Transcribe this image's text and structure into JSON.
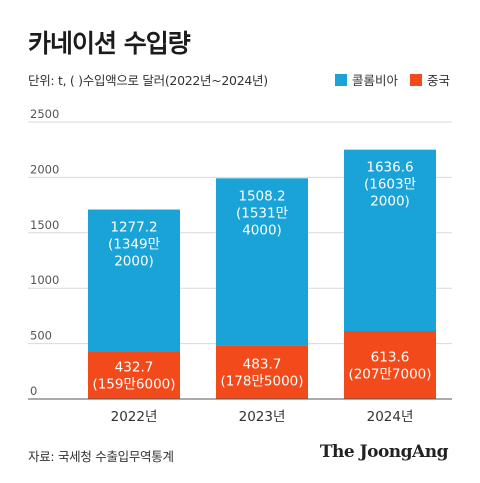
{
  "title": "카네이션 수입량",
  "subtitle": "단위: t, ( )수입액으로 달러(2022년~2024년)",
  "legend": [
    {
      "name": "콜롬비아",
      "color": "#1aa3d6"
    },
    {
      "name": "중국",
      "color": "#f24a1a"
    }
  ],
  "source": "자료: 국세청 수출입무역통계",
  "brand": "The JoongAng",
  "chart_data": {
    "type": "bar",
    "stacked": true,
    "categories": [
      "2022년",
      "2023년",
      "2024년"
    ],
    "ylim": [
      0,
      2500
    ],
    "yticks": [
      "0",
      "500",
      "1000",
      "1500",
      "2000",
      "2500"
    ],
    "grid": true,
    "series": [
      {
        "name": "중국",
        "color": "#f24a1a",
        "values": [
          432.7,
          483.7,
          613.6
        ],
        "labels": [
          [
            "432.7",
            "(159만6000)"
          ],
          [
            "483.7",
            "(178만5000)"
          ],
          [
            "613.6",
            "(207만7000)"
          ]
        ]
      },
      {
        "name": "콜롬비아",
        "color": "#1aa3d6",
        "values": [
          1277.2,
          1508.2,
          1636.6
        ],
        "labels": [
          [
            "1277.2",
            "(1349만",
            "2000)"
          ],
          [
            "1508.2",
            "(1531만",
            "4000)"
          ],
          [
            "1636.6",
            "(1603만",
            "2000)"
          ]
        ]
      }
    ]
  }
}
